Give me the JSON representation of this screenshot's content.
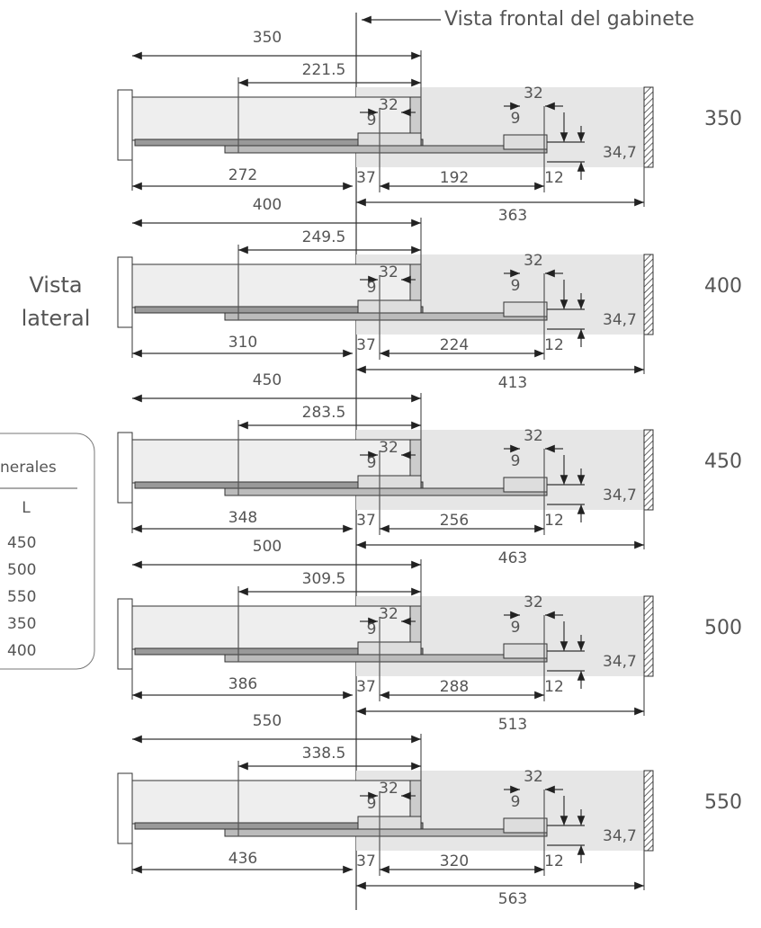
{
  "header": {
    "front_view_label": "Vista frontal del gabinete"
  },
  "side_view_label": {
    "line1": "Vista",
    "line2": "lateral"
  },
  "table": {
    "title": "nerales",
    "column": "L",
    "rows": [
      "450",
      "500",
      "550",
      "350",
      "400"
    ]
  },
  "views": [
    {
      "length_label": "350",
      "overall": "350",
      "handle_offset": "221.5",
      "rear_span": "272",
      "front_gap": "37",
      "hole_spacing": "192",
      "total_depth": "363",
      "hole_pitch_front": "32",
      "hole_offset_front": "9",
      "hole_pitch_rear": "32",
      "hole_offset_rear": "9",
      "height": "34,7",
      "bottom": "12"
    },
    {
      "length_label": "400",
      "overall": "400",
      "handle_offset": "249.5",
      "rear_span": "310",
      "front_gap": "37",
      "hole_spacing": "224",
      "total_depth": "413",
      "hole_pitch_front": "32",
      "hole_offset_front": "9",
      "hole_pitch_rear": "32",
      "hole_offset_rear": "9",
      "height": "34,7",
      "bottom": "12"
    },
    {
      "length_label": "450",
      "overall": "450",
      "handle_offset": "283.5",
      "rear_span": "348",
      "front_gap": "37",
      "hole_spacing": "256",
      "total_depth": "463",
      "hole_pitch_front": "32",
      "hole_offset_front": "9",
      "hole_pitch_rear": "32",
      "hole_offset_rear": "9",
      "height": "34,7",
      "bottom": "12"
    },
    {
      "length_label": "500",
      "overall": "500",
      "handle_offset": "309.5",
      "rear_span": "386",
      "front_gap": "37",
      "hole_spacing": "288",
      "total_depth": "513",
      "hole_pitch_front": "32",
      "hole_offset_front": "9",
      "hole_pitch_rear": "32",
      "hole_offset_rear": "9",
      "height": "34,7",
      "bottom": "12"
    },
    {
      "length_label": "550",
      "overall": "550",
      "handle_offset": "338.5",
      "rear_span": "436",
      "front_gap": "37",
      "hole_spacing": "320",
      "total_depth": "563",
      "hole_pitch_front": "32",
      "hole_offset_front": "9",
      "hole_pitch_rear": "32",
      "hole_offset_rear": "9",
      "height": "34,7",
      "bottom": "12"
    }
  ]
}
